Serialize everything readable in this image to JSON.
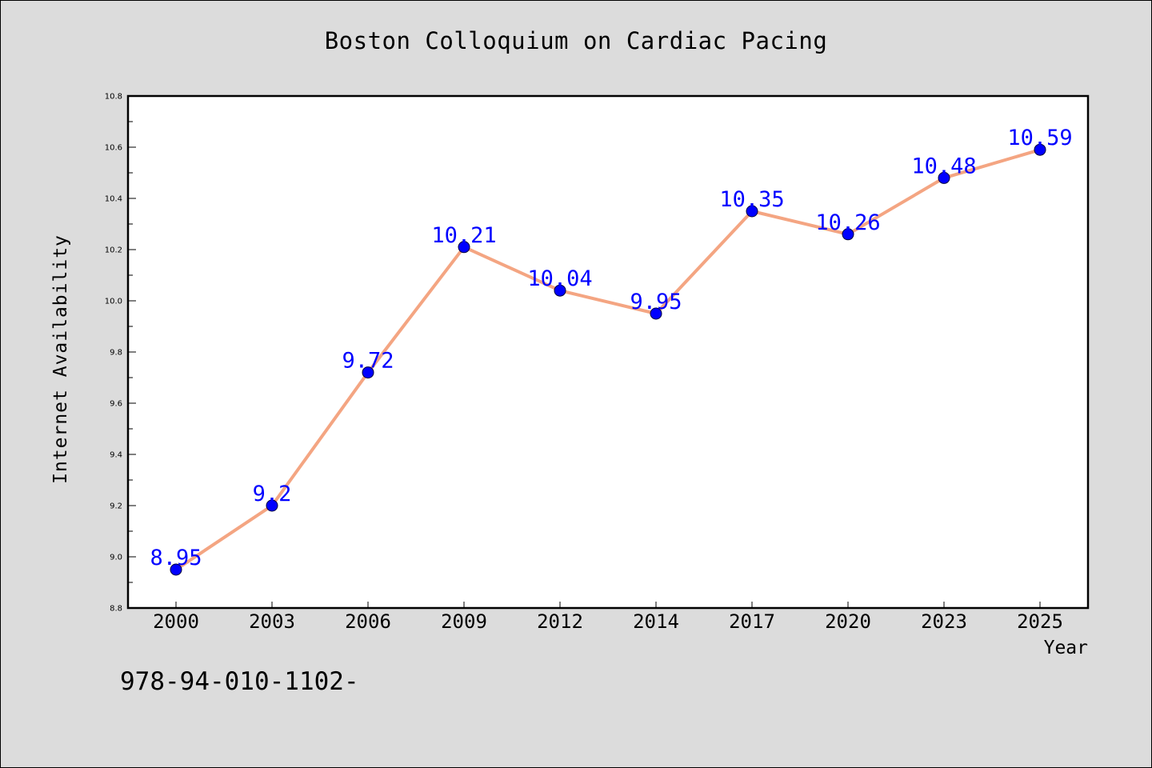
{
  "chart_data": {
    "type": "line",
    "title": "Boston Colloquium on Cardiac Pacing",
    "xlabel": "Year",
    "ylabel": "Internet Availability",
    "categories": [
      "2000",
      "2003",
      "2006",
      "2009",
      "2012",
      "2014",
      "2017",
      "2020",
      "2023",
      "2025"
    ],
    "series": [
      {
        "values": [
          8.95,
          9.2,
          9.72,
          10.21,
          10.04,
          9.95,
          10.35,
          10.26,
          10.48,
          10.59
        ],
        "line_color": "#f4a582",
        "marker_color": "#0000ff"
      }
    ],
    "ylim": [
      8.8,
      10.8
    ],
    "yticks": [
      "8.8",
      "9.0",
      "9.2",
      "9.4",
      "9.6",
      "9.8",
      "10.0",
      "10.2",
      "10.4",
      "10.6",
      "10.8"
    ],
    "data_labels": [
      "8.95",
      "9.2",
      "9.72",
      "10.21",
      "10.04",
      "9.95",
      "10.35",
      "10.26",
      "10.48",
      "10.59"
    ],
    "grid": false,
    "legend": "none",
    "annotation": "978-94-010-1102-"
  }
}
